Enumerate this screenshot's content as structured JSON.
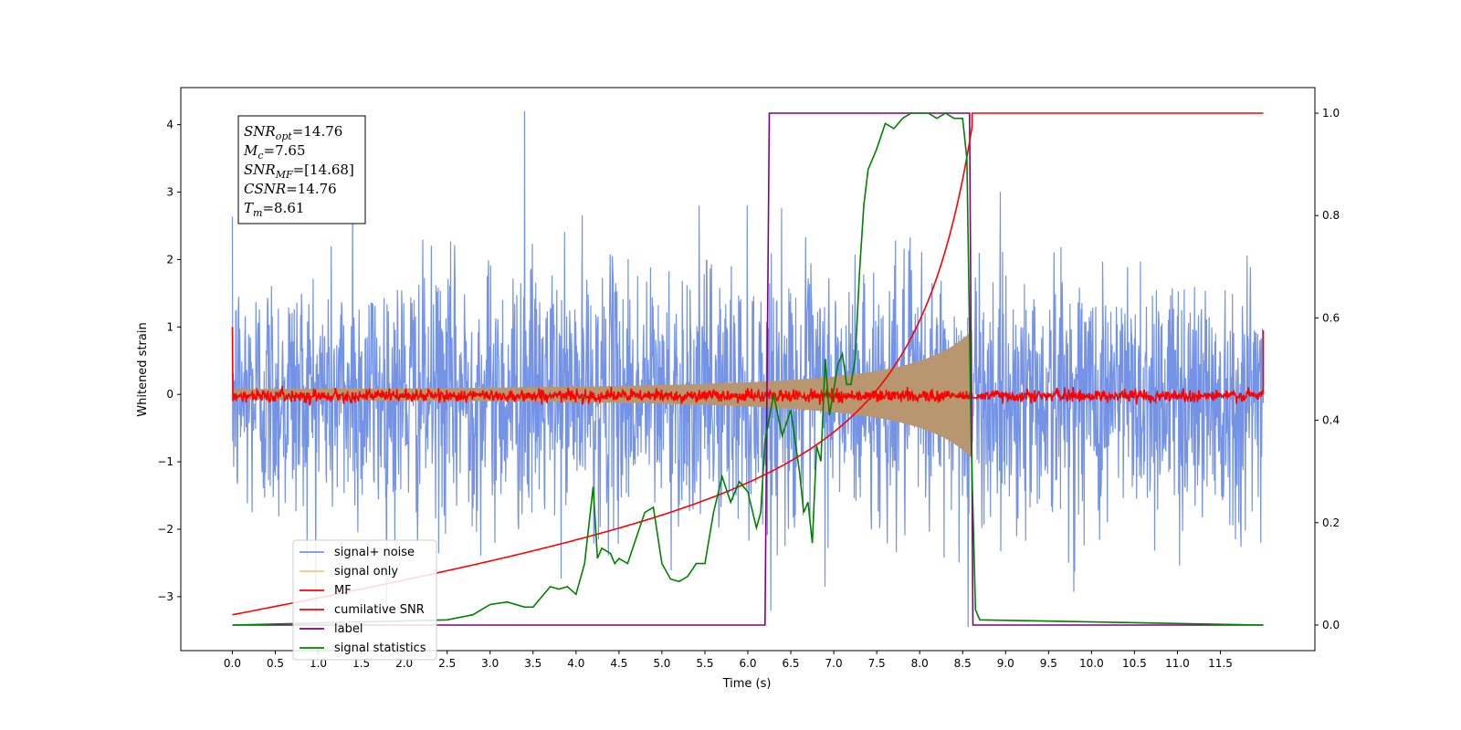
{
  "chart_data": {
    "type": "line",
    "xlabel": "Time (s)",
    "ylabel": "Whitened strain",
    "xlim": [
      -0.6,
      12.6
    ],
    "ylim": [
      -3.8,
      4.55
    ],
    "ylim_right": [
      -0.05,
      1.05
    ],
    "x_ticks": [
      "0.0",
      "0.5",
      "1.0",
      "1.5",
      "2.0",
      "2.5",
      "3.0",
      "3.5",
      "4.0",
      "4.5",
      "5.0",
      "5.5",
      "6.0",
      "6.5",
      "7.0",
      "7.5",
      "8.0",
      "8.5",
      "9.0",
      "9.5",
      "10.0",
      "10.5",
      "11.0",
      "11.5"
    ],
    "y_ticks": [
      "−3",
      "−2",
      "−1",
      "0",
      "1",
      "2",
      "3",
      "4"
    ],
    "y_right_ticks": [
      "0.0",
      "0.2",
      "0.4",
      "0.6",
      "0.8",
      "1.0"
    ],
    "annotation": [
      {
        "name": "SNR",
        "sub": "opt",
        "value": "=14.76"
      },
      {
        "name": "M",
        "sub": "c",
        "value": "=7.65"
      },
      {
        "name": "SNR",
        "sub": "MF",
        "value": "=[14.68]"
      },
      {
        "name": "CSNR",
        "sub": "",
        "value": "=14.76"
      },
      {
        "name": "T",
        "sub": "m",
        "value": "=8.61"
      }
    ],
    "legend_position": "lower-left",
    "series": [
      {
        "name": "signal+ noise",
        "color": "#7593e6",
        "axis": "left",
        "description_level": "noise amplitude ~ ±2.6, peaks to 4.2 and -3.4"
      },
      {
        "name": "signal only",
        "color": "#f5c67e",
        "axis": "left",
        "envelope": {
          "start": 0.05,
          "peak": 0.95,
          "t_merge": 8.61
        }
      },
      {
        "name": "MF",
        "color": "#ff0000",
        "axis": "left",
        "edges": [
          1.0,
          0.95
        ]
      },
      {
        "name": "cumilative SNR",
        "color": "#ff0000",
        "axis": "right",
        "x": [
          0.0,
          1.0,
          2.0,
          3.0,
          4.0,
          5.0,
          5.5,
          6.0,
          6.5,
          7.0,
          7.5,
          8.0,
          8.3,
          8.5,
          8.61,
          12.0
        ],
        "y": [
          0.02,
          0.07,
          0.11,
          0.145,
          0.18,
          0.225,
          0.25,
          0.29,
          0.35,
          0.43,
          0.53,
          0.66,
          0.77,
          0.88,
          1.0,
          1.0
        ]
      },
      {
        "name": "label",
        "color": "#800080",
        "axis": "right",
        "x": [
          0.0,
          6.2,
          6.25,
          8.58,
          8.62,
          12.0
        ],
        "y": [
          0.0,
          0.0,
          1.0,
          1.0,
          0.0,
          0.0
        ]
      },
      {
        "name": "signal statistics",
        "color": "#008000",
        "axis": "right",
        "x": [
          0.0,
          2.5,
          2.8,
          3.0,
          3.2,
          3.4,
          3.5,
          3.6,
          3.7,
          3.8,
          3.9,
          4.0,
          4.1,
          4.2,
          4.25,
          4.3,
          4.4,
          4.45,
          4.5,
          4.6,
          4.7,
          4.8,
          4.9,
          5.0,
          5.1,
          5.2,
          5.3,
          5.4,
          5.5,
          5.6,
          5.7,
          5.8,
          5.9,
          6.0,
          6.1,
          6.15,
          6.2,
          6.3,
          6.4,
          6.5,
          6.6,
          6.65,
          6.7,
          6.75,
          6.8,
          6.85,
          6.9,
          6.95,
          7.0,
          7.05,
          7.1,
          7.15,
          7.2,
          7.25,
          7.3,
          7.35,
          7.4,
          7.5,
          7.6,
          7.7,
          7.8,
          7.9,
          8.0,
          8.1,
          8.2,
          8.3,
          8.4,
          8.5,
          8.55,
          8.6,
          8.65,
          8.7,
          12.0
        ],
        "y": [
          0.0,
          0.01,
          0.02,
          0.04,
          0.045,
          0.035,
          0.035,
          0.055,
          0.075,
          0.07,
          0.075,
          0.06,
          0.12,
          0.27,
          0.13,
          0.15,
          0.14,
          0.12,
          0.13,
          0.12,
          0.17,
          0.22,
          0.23,
          0.12,
          0.09,
          0.085,
          0.095,
          0.12,
          0.12,
          0.22,
          0.29,
          0.24,
          0.28,
          0.26,
          0.19,
          0.22,
          0.36,
          0.45,
          0.37,
          0.42,
          0.3,
          0.22,
          0.24,
          0.16,
          0.35,
          0.32,
          0.52,
          0.41,
          0.46,
          0.51,
          0.53,
          0.47,
          0.47,
          0.52,
          0.69,
          0.82,
          0.89,
          0.93,
          0.98,
          0.97,
          0.99,
          1.0,
          1.0,
          1.0,
          0.99,
          1.0,
          0.99,
          0.99,
          0.91,
          0.36,
          0.03,
          0.01,
          0.0
        ]
      }
    ]
  }
}
